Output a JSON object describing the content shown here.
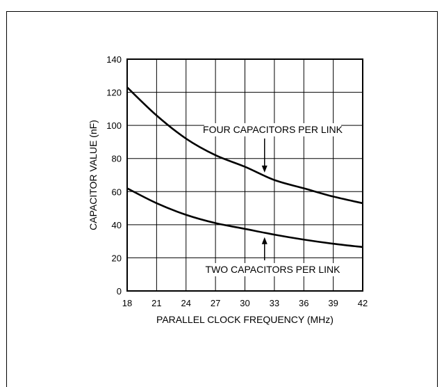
{
  "chart_data": {
    "type": "line",
    "xlabel": "PARALLEL CLOCK FREQUENCY (MHz)",
    "ylabel": "CAPACITOR VALUE (nF)",
    "xlim": [
      18,
      42
    ],
    "ylim": [
      0,
      140
    ],
    "xticks": [
      18,
      21,
      24,
      27,
      30,
      33,
      36,
      39,
      42
    ],
    "yticks": [
      0,
      20,
      40,
      60,
      80,
      100,
      120,
      140
    ],
    "grid": true,
    "series": [
      {
        "name": "FOUR CAPACITORS PER LINK",
        "x": [
          18,
          21,
          24,
          27,
          30,
          33,
          36,
          39,
          42
        ],
        "y": [
          123,
          106,
          92,
          82,
          75,
          67,
          62,
          57,
          53
        ]
      },
      {
        "name": "TWO CAPACITORS PER LINK",
        "x": [
          18,
          21,
          24,
          27,
          30,
          33,
          36,
          39,
          42
        ],
        "y": [
          62,
          53,
          46,
          41,
          37.5,
          34,
          31,
          28.5,
          26.5
        ]
      }
    ],
    "annotations": [
      {
        "text": "FOUR CAPACITORS PER LINK",
        "arrow_to": [
          32,
          69
        ]
      },
      {
        "text": "TWO CAPACITORS PER LINK",
        "arrow_to": [
          32,
          35
        ]
      }
    ]
  },
  "colors": {
    "line": "#000000",
    "grid": "#000000",
    "background": "#ffffff"
  }
}
